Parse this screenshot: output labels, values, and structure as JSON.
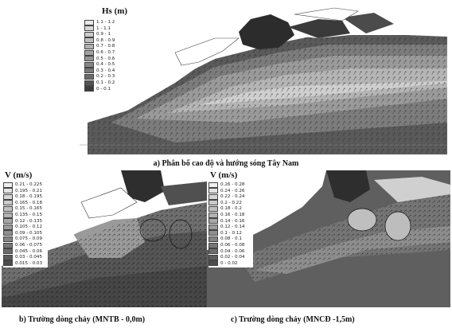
{
  "panel_a": {
    "legend_title": "Hs (m)",
    "legend": [
      {
        "label": "1.1 - 1.2",
        "color": "#e8e8e8"
      },
      {
        "label": "1 - 1.1",
        "color": "#d9d9d9"
      },
      {
        "label": "0.9 - 1",
        "color": "#cbcbcb"
      },
      {
        "label": "0.8 - 0.9",
        "color": "#bdbdbd"
      },
      {
        "label": "0.7 - 0.8",
        "color": "#b0b0b0"
      },
      {
        "label": "0.6 - 0.7",
        "color": "#a2a2a2"
      },
      {
        "label": "0.5 - 0.6",
        "color": "#949494"
      },
      {
        "label": "0.4 - 0.5",
        "color": "#868686"
      },
      {
        "label": "0.3 - 0.4",
        "color": "#787878"
      },
      {
        "label": "0.2 - 0.3",
        "color": "#6a6a6a"
      },
      {
        "label": "0.1 - 0.2",
        "color": "#555555"
      },
      {
        "label": "0 - 0.1",
        "color": "#3c3c3c"
      }
    ],
    "caption": "a) Phân bố cao độ và hướng sóng Tây Nam"
  },
  "panel_b": {
    "legend_title": "V (m/s)",
    "legend": [
      {
        "label": "0.21 - 0.225",
        "color": "#efefef"
      },
      {
        "label": "0.195 - 0.21",
        "color": "#e3e3e3"
      },
      {
        "label": "0.18 - 0.195",
        "color": "#d7d7d7"
      },
      {
        "label": "0.165 - 0.18",
        "color": "#cbcbcb"
      },
      {
        "label": "0.15 - 0.165",
        "color": "#bfbfbf"
      },
      {
        "label": "0.135 - 0.15",
        "color": "#b3b3b3"
      },
      {
        "label": "0.12 - 0.135",
        "color": "#a7a7a7"
      },
      {
        "label": "0.105 - 0.12",
        "color": "#9b9b9b"
      },
      {
        "label": "0.09 - 0.105",
        "color": "#8f8f8f"
      },
      {
        "label": "0.075 - 0.09",
        "color": "#838383"
      },
      {
        "label": "0.06 - 0.075",
        "color": "#777777"
      },
      {
        "label": "0.045 - 0.06",
        "color": "#6b6b6b"
      },
      {
        "label": "0.03 - 0.045",
        "color": "#5c5c5c"
      },
      {
        "label": "0.015 - 0.03",
        "color": "#4c4c4c"
      }
    ],
    "caption": "b) Trường dòng chảy (MNTB - 0,0m)"
  },
  "panel_c": {
    "legend_title": "V (m/s)",
    "legend": [
      {
        "label": "0.26 - 0.28",
        "color": "#efefef"
      },
      {
        "label": "0.24 - 0.26",
        "color": "#e3e3e3"
      },
      {
        "label": "0.22 - 0.24",
        "color": "#d7d7d7"
      },
      {
        "label": "0.2 - 0.22",
        "color": "#cbcbcb"
      },
      {
        "label": "0.18 - 0.2",
        "color": "#bfbfbf"
      },
      {
        "label": "0.16 - 0.18",
        "color": "#b3b3b3"
      },
      {
        "label": "0.14 - 0.16",
        "color": "#a7a7a7"
      },
      {
        "label": "0.12 - 0.14",
        "color": "#9b9b9b"
      },
      {
        "label": "0.1 - 0.12",
        "color": "#8f8f8f"
      },
      {
        "label": "0.08 - 0.1",
        "color": "#838383"
      },
      {
        "label": "0.06 - 0.08",
        "color": "#777777"
      },
      {
        "label": "0.04 - 0.06",
        "color": "#6b6b6b"
      },
      {
        "label": "0.02 - 0.04",
        "color": "#5c5c5c"
      },
      {
        "label": "0 - 0.02",
        "color": "#4c4c4c"
      }
    ],
    "caption": "c) Trường dòng chảy (MNCĐ -1,5m)"
  }
}
